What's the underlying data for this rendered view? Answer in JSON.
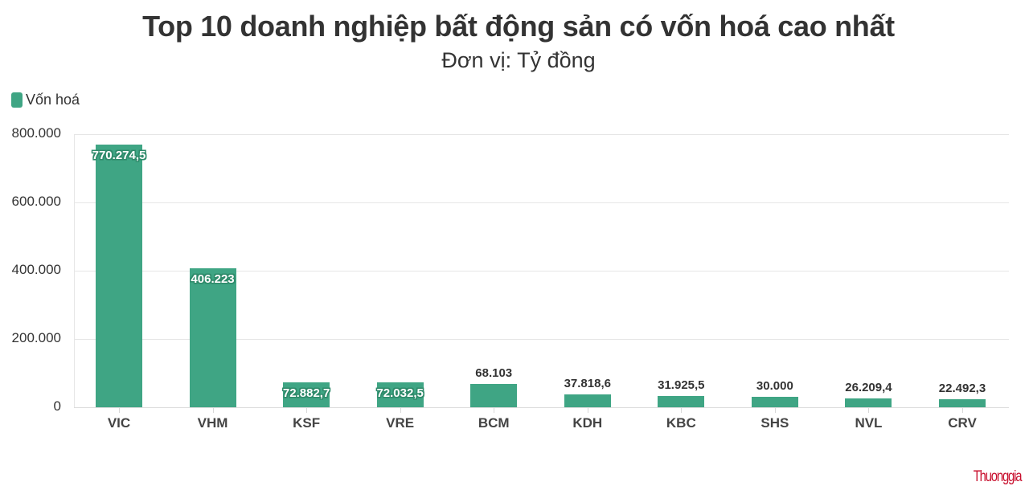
{
  "header": {
    "title": "Top 10 doanh nghiệp bất động sản có vốn hoá cao nhất",
    "subtitle": "Đơn vị: Tỷ đồng"
  },
  "legend": {
    "items": [
      {
        "label": "Vốn hoá",
        "color": "#3fa584"
      }
    ]
  },
  "branding": {
    "logo_text": "Thuonggia"
  },
  "chart_data": {
    "type": "bar",
    "title": "Top 10 doanh nghiệp bất động sản có vốn hoá cao nhất",
    "subtitle": "Đơn vị: Tỷ đồng",
    "xlabel": "",
    "ylabel": "",
    "categories": [
      "VIC",
      "VHM",
      "KSF",
      "VRE",
      "BCM",
      "KDH",
      "KBC",
      "SHS",
      "NVL",
      "CRV"
    ],
    "series": [
      {
        "name": "Vốn hoá",
        "color": "#3fa584",
        "values": [
          770274.5,
          406223,
          72882.7,
          72032.5,
          68103,
          37818.6,
          31925.5,
          30000,
          26209.4,
          22492.3
        ],
        "value_labels": [
          "770.274,5",
          "406.223",
          "72.882,7",
          "72.032,5",
          "68.103",
          "37.818,6",
          "31.925,5",
          "30.000",
          "26.209,4",
          "22.492,3"
        ]
      }
    ],
    "ylim": [
      0,
      800000
    ],
    "yticks": [
      0,
      200000,
      400000,
      600000,
      800000
    ],
    "ytick_labels": [
      "0",
      "200.000",
      "400.000",
      "600.000",
      "800.000"
    ],
    "grid": true,
    "legend_position": "top-left"
  }
}
